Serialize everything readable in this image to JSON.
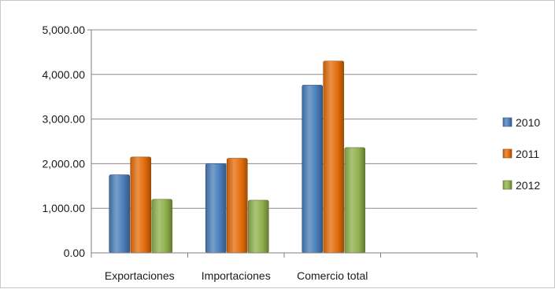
{
  "chart_data": {
    "type": "bar",
    "categories": [
      "Exportaciones",
      "Importaciones",
      "Comercio total"
    ],
    "series": [
      {
        "name": "2010",
        "values": [
          1750,
          2000,
          3760
        ],
        "color": "#4a7ebb"
      },
      {
        "name": "2011",
        "values": [
          2150,
          2120,
          4300
        ],
        "color": "#e46c0a"
      },
      {
        "name": "2012",
        "values": [
          1200,
          1180,
          2360
        ],
        "color": "#8fb04b"
      }
    ],
    "ylim": [
      0,
      5000
    ],
    "yticks": [
      0,
      1000,
      2000,
      3000,
      4000,
      5000
    ],
    "ytick_labels": [
      "0.00",
      "1,000.00",
      "2,000.00",
      "3,000.00",
      "4,000.00",
      "5,000.00"
    ],
    "grid": true,
    "legend_position": "right"
  }
}
